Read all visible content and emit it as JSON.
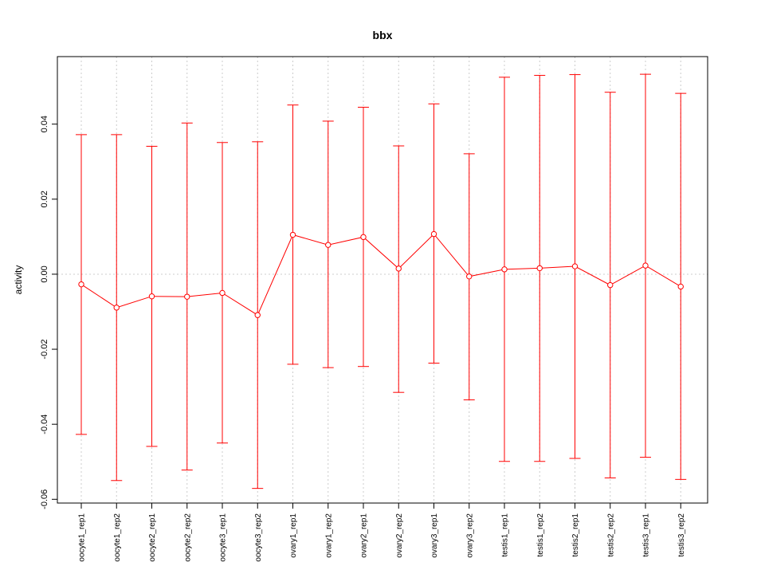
{
  "chart_data": {
    "type": "line",
    "title": "bbx",
    "xlabel": "",
    "ylabel": "activity",
    "ylim": [
      -0.061,
      0.058
    ],
    "yticks": [
      "-0.06",
      "-0.04",
      "-0.02",
      "0.00",
      "0.02",
      "0.04"
    ],
    "ytick_values": [
      -0.06,
      -0.04,
      -0.02,
      0.0,
      0.02,
      0.04
    ],
    "grid": true,
    "color": "#ff0000",
    "grid_color": "#cccccc",
    "categories": [
      "oocyte1_rep1",
      "oocyte1_rep2",
      "oocyte2_rep1",
      "oocyte2_rep2",
      "oocyte3_rep1",
      "oocyte3_rep2",
      "ovary1_rep1",
      "ovary1_rep2",
      "ovary2_rep1",
      "ovary2_rep2",
      "ovary3_rep1",
      "ovary3_rep2",
      "testis1_rep1",
      "testis1_rep2",
      "testis2_rep1",
      "testis2_rep2",
      "testis3_rep1",
      "testis3_rep2"
    ],
    "series": [
      {
        "values": [
          -0.0027,
          -0.0089,
          -0.0059,
          -0.006,
          -0.005,
          -0.0109,
          0.0105,
          0.0078,
          0.0099,
          0.0015,
          0.0107,
          -0.0006,
          0.0013,
          0.0016,
          0.0021,
          -0.0029,
          0.0023,
          -0.0033
        ],
        "upper": [
          0.0372,
          0.0372,
          0.0341,
          0.0403,
          0.0351,
          0.0353,
          0.0451,
          0.0408,
          0.0445,
          0.0342,
          0.0454,
          0.0321,
          0.0525,
          0.053,
          0.0532,
          0.0485,
          0.0533,
          0.0482
        ],
        "lower": [
          -0.0427,
          -0.055,
          -0.0459,
          -0.0522,
          -0.045,
          -0.0571,
          -0.024,
          -0.0249,
          -0.0246,
          -0.0315,
          -0.0237,
          -0.0335,
          -0.0499,
          -0.0499,
          -0.0491,
          -0.0543,
          -0.0488,
          -0.0547
        ]
      }
    ]
  }
}
